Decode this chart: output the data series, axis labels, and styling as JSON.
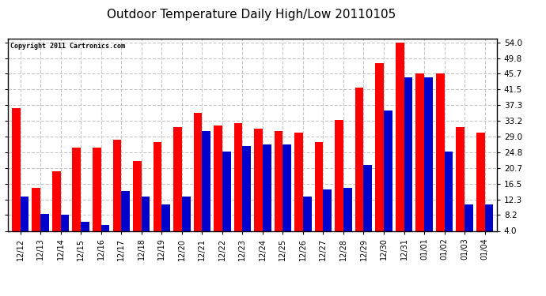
{
  "title": "Outdoor Temperature Daily High/Low 20110105",
  "copyright": "Copyright 2011 Cartronics.com",
  "dates": [
    "12/12",
    "12/13",
    "12/14",
    "12/15",
    "12/16",
    "12/17",
    "12/18",
    "12/19",
    "12/20",
    "12/21",
    "12/22",
    "12/23",
    "12/24",
    "12/25",
    "12/26",
    "12/27",
    "12/28",
    "12/29",
    "12/30",
    "12/31",
    "01/01",
    "01/02",
    "01/03",
    "01/04"
  ],
  "highs": [
    36.5,
    15.3,
    19.8,
    26.0,
    26.0,
    28.2,
    22.5,
    27.5,
    31.5,
    35.2,
    32.0,
    32.5,
    31.0,
    30.5,
    30.0,
    27.5,
    33.5,
    42.0,
    48.5,
    54.0,
    45.7,
    45.7,
    31.5,
    30.0
  ],
  "lows": [
    13.0,
    8.5,
    8.2,
    6.5,
    5.5,
    14.5,
    13.0,
    11.0,
    13.0,
    30.5,
    25.0,
    26.5,
    27.0,
    27.0,
    13.0,
    15.0,
    15.5,
    21.5,
    36.0,
    44.8,
    44.8,
    25.0,
    11.0,
    11.0
  ],
  "high_color": "#ff0000",
  "low_color": "#0000cc",
  "bg_color": "#ffffff",
  "plot_bg_color": "#ffffff",
  "grid_color": "#c8c8c8",
  "title_fontsize": 11,
  "yticks": [
    4.0,
    8.2,
    12.3,
    16.5,
    20.7,
    24.8,
    29.0,
    33.2,
    37.3,
    41.5,
    45.7,
    49.8,
    54.0
  ],
  "ylim": [
    4.0,
    55.0
  ],
  "bar_width": 0.42
}
